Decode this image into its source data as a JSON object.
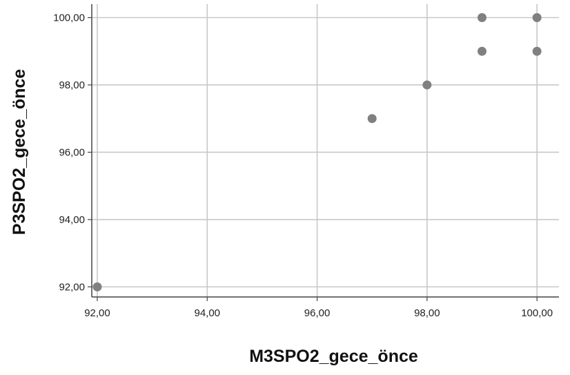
{
  "chart_data": {
    "type": "scatter",
    "xlabel": "M3SPO2_gece_önce",
    "ylabel": "P3SPO2_gece_önce",
    "xlim": [
      91.9,
      100.4
    ],
    "ylim": [
      91.7,
      100.4
    ],
    "x_ticks": [
      92,
      94,
      96,
      98,
      100
    ],
    "y_ticks": [
      92,
      94,
      96,
      98,
      100
    ],
    "x_tick_labels": [
      "92,00",
      "94,00",
      "96,00",
      "98,00",
      "100,00"
    ],
    "y_tick_labels": [
      "92,00",
      "94,00",
      "96,00",
      "98,00",
      "100,00"
    ],
    "grid": true,
    "series": [
      {
        "points": [
          {
            "x": 92,
            "y": 92
          },
          {
            "x": 97,
            "y": 97
          },
          {
            "x": 98,
            "y": 98
          },
          {
            "x": 99,
            "y": 99
          },
          {
            "x": 99,
            "y": 100
          },
          {
            "x": 100,
            "y": 99
          },
          {
            "x": 100,
            "y": 100
          }
        ],
        "color": "#808080"
      }
    ],
    "colors": {
      "grid": "#c8c8c8",
      "axis": "#444444",
      "point": "#808080"
    }
  }
}
